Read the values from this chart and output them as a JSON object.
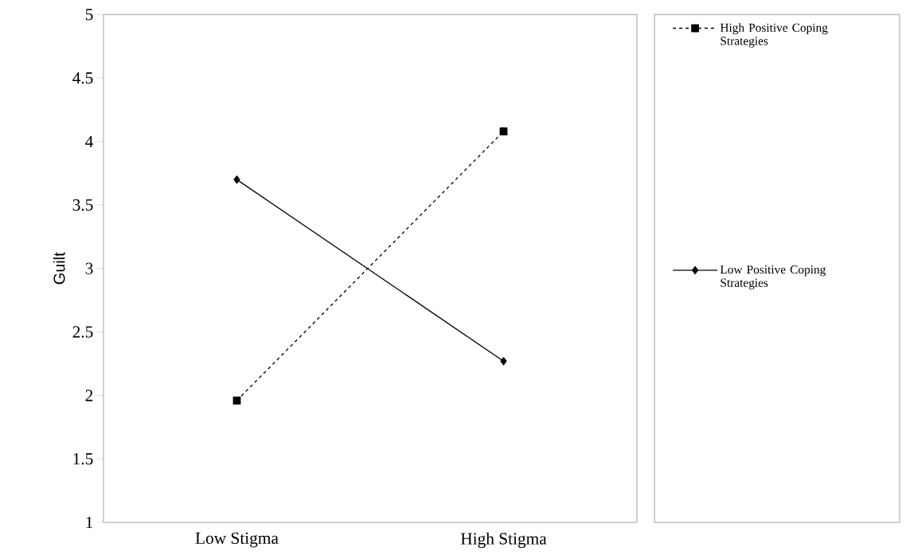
{
  "chart_data": {
    "type": "line",
    "ylabel": "Guilt",
    "categories": [
      "Low Stigma",
      "High Stigma"
    ],
    "series": [
      {
        "name": "High Positive Coping Strategies",
        "color": "#000000",
        "values": [
          1.96,
          4.08
        ],
        "marker": "square",
        "line_style": "dashed"
      },
      {
        "name": "Low Positive Coping Strategies",
        "color": "#000000",
        "values": [
          3.7,
          2.27
        ],
        "marker": "diamond",
        "line_style": "solid"
      }
    ],
    "ylim": [
      1,
      5
    ],
    "yticks": [
      1,
      1.5,
      2,
      2.5,
      3,
      3.5,
      4,
      4.5,
      5
    ],
    "legend": "right"
  }
}
